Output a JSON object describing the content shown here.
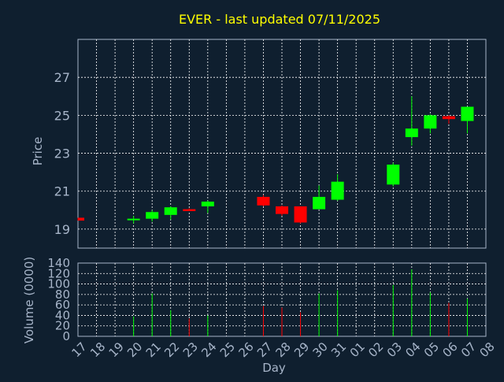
{
  "chart_data": {
    "type": "candlestick",
    "title": "EVER - last updated 07/11/2025",
    "xlabel": "Day",
    "price_panel": {
      "ylabel": "Price",
      "ylim": [
        18,
        29
      ],
      "yticks": [
        19,
        21,
        23,
        25,
        27
      ]
    },
    "volume_panel": {
      "ylabel": "Volume (0000)",
      "ylim": [
        0,
        140
      ],
      "yticks": [
        0,
        20,
        40,
        60,
        80,
        100,
        120,
        140
      ]
    },
    "x_tick_labels": [
      "17",
      "18",
      "19",
      "20",
      "21",
      "22",
      "23",
      "24",
      "25",
      "26",
      "27",
      "28",
      "29",
      "30",
      "31",
      "01",
      "02",
      "03",
      "04",
      "05",
      "06",
      "07",
      "08"
    ],
    "colors": {
      "up": "#00ff00",
      "down": "#ff0000",
      "grid": "#ffffff",
      "axis": "#a7b5c9",
      "title": "#ffff00",
      "background": "#0f1f2f"
    },
    "candles": [
      {
        "day": "17",
        "open": 19.6,
        "high": 19.6,
        "low": 19.45,
        "close": 19.45,
        "volume": 0
      },
      {
        "day": "20",
        "open": 19.5,
        "high": 19.7,
        "low": 19.3,
        "close": 19.55,
        "volume": 38
      },
      {
        "day": "21",
        "open": 19.55,
        "high": 20.0,
        "low": 19.4,
        "close": 19.9,
        "volume": 82
      },
      {
        "day": "22",
        "open": 19.75,
        "high": 20.2,
        "low": 19.5,
        "close": 20.15,
        "volume": 50
      },
      {
        "day": "23",
        "open": 20.05,
        "high": 20.1,
        "low": 19.95,
        "close": 19.95,
        "volume": 34
      },
      {
        "day": "24",
        "open": 20.2,
        "high": 20.5,
        "low": 19.85,
        "close": 20.45,
        "volume": 40
      },
      {
        "day": "27",
        "open": 20.7,
        "high": 20.8,
        "low": 20.2,
        "close": 20.25,
        "volume": 58
      },
      {
        "day": "28",
        "open": 20.2,
        "high": 20.25,
        "low": 19.7,
        "close": 19.8,
        "volume": 55
      },
      {
        "day": "29",
        "open": 20.2,
        "high": 20.2,
        "low": 19.3,
        "close": 19.35,
        "volume": 46
      },
      {
        "day": "30",
        "open": 20.05,
        "high": 21.3,
        "low": 20.05,
        "close": 20.7,
        "volume": 82
      },
      {
        "day": "31",
        "open": 20.55,
        "high": 21.9,
        "low": 20.5,
        "close": 21.5,
        "volume": 88
      },
      {
        "day": "03",
        "open": 21.35,
        "high": 22.5,
        "low": 21.25,
        "close": 22.4,
        "volume": 98
      },
      {
        "day": "04",
        "open": 23.85,
        "high": 26.0,
        "low": 23.4,
        "close": 24.3,
        "volume": 128
      },
      {
        "day": "05",
        "open": 24.3,
        "high": 25.05,
        "low": 24.05,
        "close": 25.0,
        "volume": 84
      },
      {
        "day": "06",
        "open": 24.95,
        "high": 25.0,
        "low": 24.55,
        "close": 24.8,
        "volume": 64
      },
      {
        "day": "07",
        "open": 24.7,
        "high": 25.45,
        "low": 24.05,
        "close": 25.45,
        "volume": 72
      }
    ]
  }
}
